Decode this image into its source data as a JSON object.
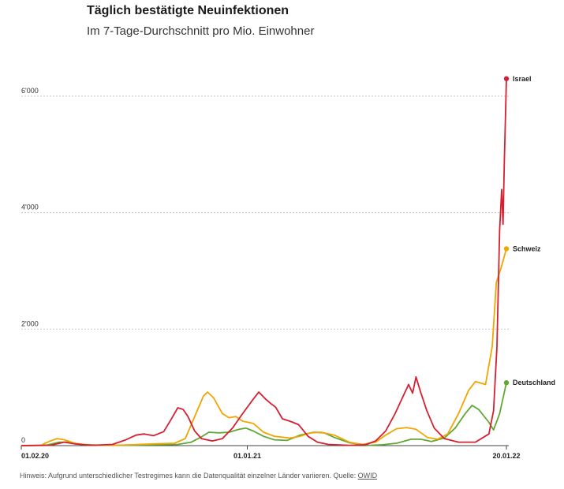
{
  "chart_data": {
    "type": "line",
    "title": "Täglich bestätigte Neuinfektionen",
    "subtitle": "Im 7-Tage-Durchschnitt pro Mio. Einwohner",
    "ylim": [
      0,
      6500
    ],
    "yticks": [
      {
        "value": 0,
        "label": "0"
      },
      {
        "value": 2000,
        "label": "2'000"
      },
      {
        "value": 4000,
        "label": "4'000"
      },
      {
        "value": 6000,
        "label": "6'000"
      }
    ],
    "xlim": [
      "2020-02-01",
      "2022-01-20"
    ],
    "xticks": [
      {
        "date": "2020-02-01",
        "label": "01.02.20"
      },
      {
        "date": "2021-01-01",
        "label": "01.01.21"
      },
      {
        "date": "2022-01-20",
        "label": "20.01.22"
      }
    ],
    "grid": true,
    "series": [
      {
        "name": "Israel",
        "color": "#d62031",
        "points": [
          [
            "2020-02-01",
            0
          ],
          [
            "2020-03-15",
            5
          ],
          [
            "2020-04-05",
            60
          ],
          [
            "2020-04-20",
            30
          ],
          [
            "2020-05-15",
            5
          ],
          [
            "2020-06-15",
            20
          ],
          [
            "2020-07-05",
            100
          ],
          [
            "2020-07-20",
            180
          ],
          [
            "2020-08-01",
            200
          ],
          [
            "2020-08-15",
            170
          ],
          [
            "2020-08-30",
            240
          ],
          [
            "2020-09-10",
            450
          ],
          [
            "2020-09-20",
            650
          ],
          [
            "2020-09-28",
            620
          ],
          [
            "2020-10-05",
            500
          ],
          [
            "2020-10-15",
            250
          ],
          [
            "2020-10-25",
            120
          ],
          [
            "2020-11-10",
            80
          ],
          [
            "2020-11-25",
            120
          ],
          [
            "2020-12-10",
            300
          ],
          [
            "2020-12-25",
            550
          ],
          [
            "2021-01-10",
            800
          ],
          [
            "2021-01-18",
            920
          ],
          [
            "2021-01-28",
            800
          ],
          [
            "2021-02-05",
            720
          ],
          [
            "2021-02-12",
            660
          ],
          [
            "2021-02-22",
            460
          ],
          [
            "2021-03-05",
            420
          ],
          [
            "2021-03-18",
            360
          ],
          [
            "2021-04-01",
            160
          ],
          [
            "2021-04-15",
            60
          ],
          [
            "2021-05-01",
            20
          ],
          [
            "2021-06-01",
            5
          ],
          [
            "2021-06-25",
            15
          ],
          [
            "2021-07-10",
            80
          ],
          [
            "2021-07-25",
            250
          ],
          [
            "2021-08-08",
            550
          ],
          [
            "2021-08-20",
            850
          ],
          [
            "2021-08-28",
            1050
          ],
          [
            "2021-09-03",
            900
          ],
          [
            "2021-09-08",
            1180
          ],
          [
            "2021-09-14",
            950
          ],
          [
            "2021-09-24",
            600
          ],
          [
            "2021-10-05",
            300
          ],
          [
            "2021-10-20",
            120
          ],
          [
            "2021-11-10",
            60
          ],
          [
            "2021-12-05",
            60
          ],
          [
            "2021-12-25",
            200
          ],
          [
            "2022-01-01",
            600
          ],
          [
            "2022-01-06",
            1700
          ],
          [
            "2022-01-10",
            3700
          ],
          [
            "2022-01-13",
            4400
          ],
          [
            "2022-01-15",
            3800
          ],
          [
            "2022-01-17",
            4900
          ],
          [
            "2022-01-20",
            6300
          ]
        ]
      },
      {
        "name": "Schweiz",
        "color": "#f2a500",
        "points": [
          [
            "2020-02-01",
            0
          ],
          [
            "2020-03-01",
            5
          ],
          [
            "2020-03-15",
            80
          ],
          [
            "2020-03-25",
            120
          ],
          [
            "2020-04-05",
            100
          ],
          [
            "2020-04-20",
            40
          ],
          [
            "2020-05-10",
            10
          ],
          [
            "2020-06-15",
            5
          ],
          [
            "2020-07-15",
            15
          ],
          [
            "2020-08-15",
            30
          ],
          [
            "2020-09-15",
            40
          ],
          [
            "2020-10-01",
            120
          ],
          [
            "2020-10-15",
            500
          ],
          [
            "2020-10-28",
            850
          ],
          [
            "2020-11-03",
            920
          ],
          [
            "2020-11-12",
            820
          ],
          [
            "2020-11-25",
            550
          ],
          [
            "2020-12-05",
            480
          ],
          [
            "2020-12-15",
            500
          ],
          [
            "2020-12-25",
            420
          ],
          [
            "2021-01-10",
            380
          ],
          [
            "2021-01-25",
            230
          ],
          [
            "2021-02-10",
            160
          ],
          [
            "2021-03-05",
            130
          ],
          [
            "2021-03-20",
            160
          ],
          [
            "2021-04-05",
            220
          ],
          [
            "2021-04-20",
            230
          ],
          [
            "2021-05-10",
            180
          ],
          [
            "2021-06-01",
            60
          ],
          [
            "2021-06-20",
            20
          ],
          [
            "2021-07-10",
            60
          ],
          [
            "2021-07-25",
            180
          ],
          [
            "2021-08-10",
            290
          ],
          [
            "2021-08-25",
            310
          ],
          [
            "2021-09-08",
            280
          ],
          [
            "2021-09-25",
            140
          ],
          [
            "2021-10-10",
            110
          ],
          [
            "2021-10-25",
            200
          ],
          [
            "2021-11-10",
            550
          ],
          [
            "2021-11-25",
            950
          ],
          [
            "2021-12-05",
            1100
          ],
          [
            "2021-12-20",
            1050
          ],
          [
            "2021-12-30",
            1700
          ],
          [
            "2022-01-05",
            2800
          ],
          [
            "2022-01-12",
            3050
          ],
          [
            "2022-01-20",
            3380
          ]
        ]
      },
      {
        "name": "Deutschland",
        "color": "#61a832",
        "points": [
          [
            "2020-02-01",
            0
          ],
          [
            "2020-03-10",
            10
          ],
          [
            "2020-03-28",
            60
          ],
          [
            "2020-04-10",
            60
          ],
          [
            "2020-05-01",
            20
          ],
          [
            "2020-06-01",
            5
          ],
          [
            "2020-07-15",
            5
          ],
          [
            "2020-08-20",
            15
          ],
          [
            "2020-09-20",
            20
          ],
          [
            "2020-10-10",
            60
          ],
          [
            "2020-10-25",
            150
          ],
          [
            "2020-11-05",
            230
          ],
          [
            "2020-11-20",
            220
          ],
          [
            "2020-12-05",
            230
          ],
          [
            "2020-12-20",
            280
          ],
          [
            "2020-12-30",
            300
          ],
          [
            "2021-01-10",
            250
          ],
          [
            "2021-01-25",
            160
          ],
          [
            "2021-02-10",
            100
          ],
          [
            "2021-03-01",
            90
          ],
          [
            "2021-03-20",
            180
          ],
          [
            "2021-04-10",
            230
          ],
          [
            "2021-04-25",
            220
          ],
          [
            "2021-05-10",
            140
          ],
          [
            "2021-06-01",
            50
          ],
          [
            "2021-07-01",
            5
          ],
          [
            "2021-07-20",
            15
          ],
          [
            "2021-08-10",
            40
          ],
          [
            "2021-09-01",
            110
          ],
          [
            "2021-09-15",
            110
          ],
          [
            "2021-10-01",
            70
          ],
          [
            "2021-10-20",
            130
          ],
          [
            "2021-11-05",
            300
          ],
          [
            "2021-11-20",
            550
          ],
          [
            "2021-11-30",
            690
          ],
          [
            "2021-12-10",
            620
          ],
          [
            "2021-12-25",
            400
          ],
          [
            "2022-01-01",
            270
          ],
          [
            "2022-01-10",
            550
          ],
          [
            "2022-01-20",
            1080
          ]
        ]
      }
    ]
  },
  "footer": {
    "note": "Hinweis: Aufgrund unterschiedlicher Testregimes kann die Datenqualität einzelner Länder variieren. Quelle: ",
    "source_label": "OWID"
  }
}
